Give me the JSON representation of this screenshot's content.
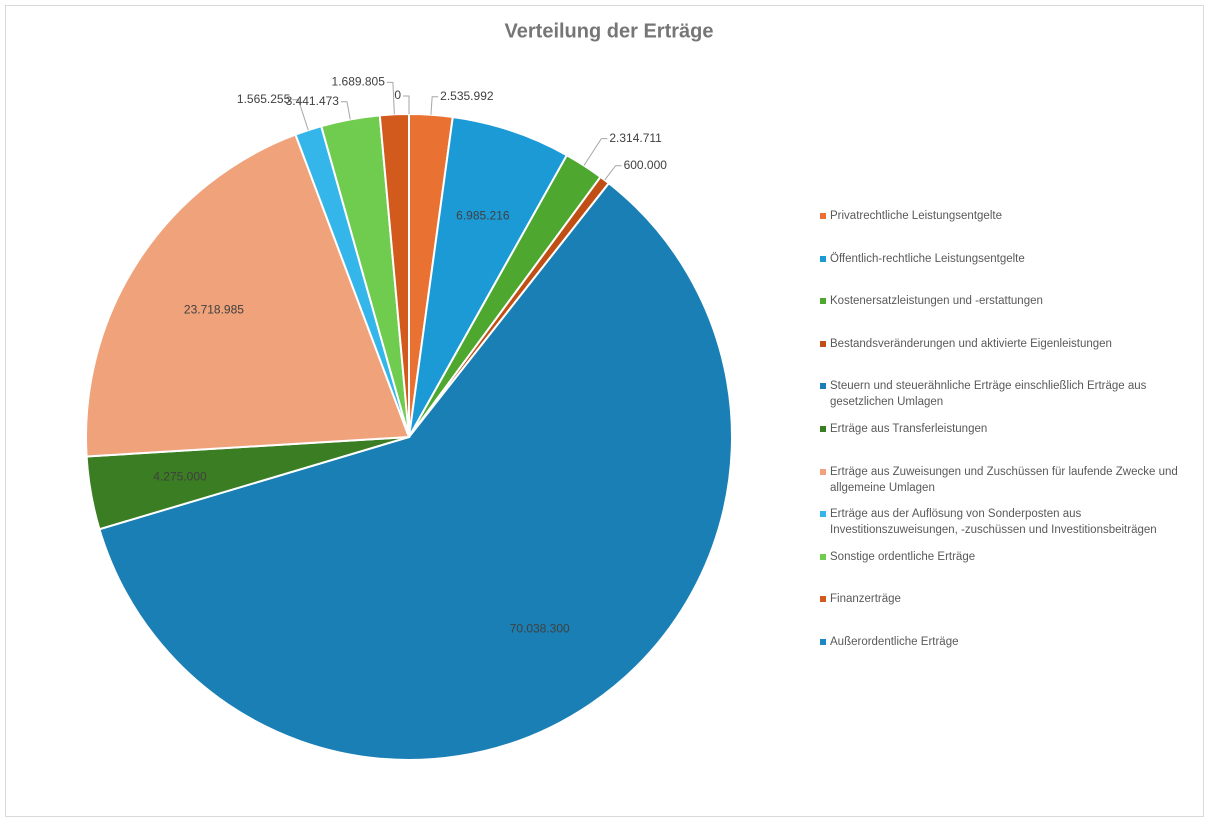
{
  "chart_data": {
    "type": "pie",
    "title": "Verteilung der Erträge",
    "series": [
      {
        "name": "Privatrechtliche Leistungsentgelte",
        "color": "#e97132",
        "values": [
          2535992
        ],
        "value_labels": [
          "2.535.992"
        ]
      },
      {
        "name": "Öffentlich-rechtliche Leistungsentgelte",
        "color": "#1b9ad6",
        "values": [
          6985216
        ],
        "value_labels": [
          "6.985.216"
        ]
      },
      {
        "name": "Kostenersatzleistungen und -erstattungen",
        "color": "#4ea72e",
        "values": [
          2314711
        ],
        "value_labels": [
          "2.314.711"
        ]
      },
      {
        "name": "Bestandsveränderungen und aktivierte Eigenleistungen",
        "color": "#c04f15",
        "values": [
          600000
        ],
        "value_labels": [
          "600.000"
        ]
      },
      {
        "name": "Steuern und steuerähnliche Erträge einschließlich Erträge aus gesetzlichen Umlagen",
        "color": "#1a7fb5",
        "values": [
          70038300
        ],
        "value_labels": [
          "70.038.300"
        ]
      },
      {
        "name": "Erträge aus Transferleistungen",
        "color": "#3b7d23",
        "values": [
          4275000
        ],
        "value_labels": [
          "4.275.000"
        ]
      },
      {
        "name": "Erträge aus Zuweisungen und Zuschüssen für laufende Zwecke und allgemeine Umlagen",
        "color": "#f0a27a",
        "values": [
          23718985
        ],
        "value_labels": [
          "23.718.985"
        ]
      },
      {
        "name": "Erträge aus der Auflösung von Sonderposten aus Investitionszuweisungen, -zuschüssen und Investitionsbeiträgen",
        "color": "#34b6ea",
        "values": [
          1565255
        ],
        "value_labels": [
          "1.565.255"
        ]
      },
      {
        "name": "Sonstige ordentliche Erträge",
        "color": "#6fcc4f",
        "values": [
          3441473
        ],
        "value_labels": [
          "3.441.473"
        ]
      },
      {
        "name": "Finanzerträge",
        "color": "#d35a1d",
        "values": [
          1689805
        ],
        "value_labels": [
          "1.689.805"
        ]
      },
      {
        "name": "Außerordentliche Erträge",
        "color": "#1a86c4",
        "values": [
          0
        ],
        "value_labels": [
          "0"
        ]
      }
    ],
    "legend": "right"
  }
}
